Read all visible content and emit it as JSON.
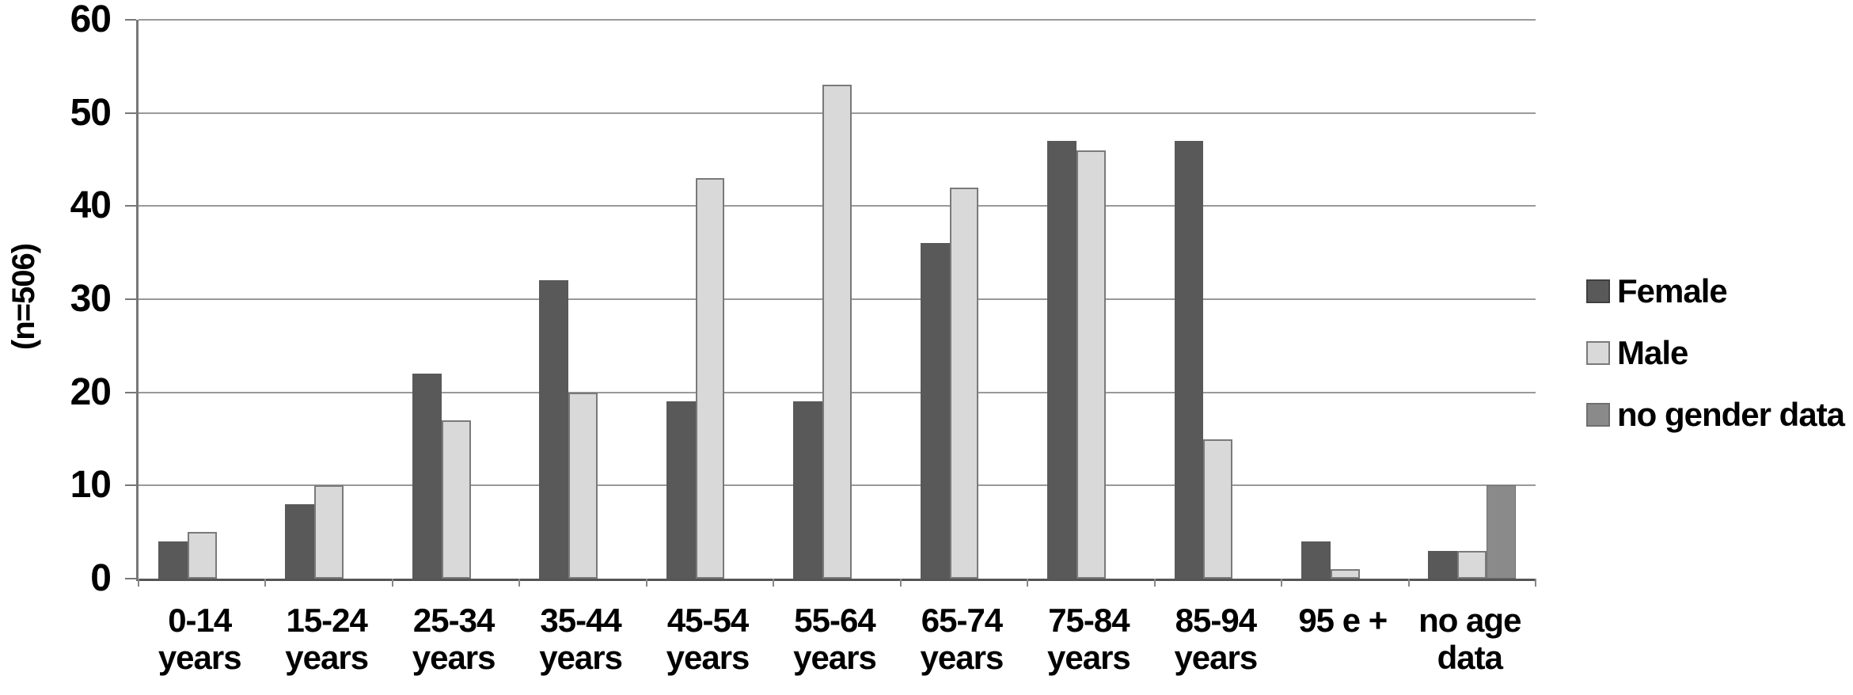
{
  "figure": {
    "background": "#ffffff",
    "colors": {
      "female": "#595959",
      "male": "#d9d9d9",
      "male_border": "#7a7a7a",
      "no_gender_data": "#8a8a8a",
      "gridline": "#999999",
      "x_axis_line": "#555555",
      "y_axis_line": "#777777",
      "text": "#000000"
    }
  },
  "chart_data": {
    "type": "bar",
    "title": "",
    "xlabel": "",
    "ylabel": "(n=506)",
    "ylim": [
      0,
      60
    ],
    "ytick_step": 10,
    "ytick_labels": [
      "0",
      "10",
      "20",
      "30",
      "40",
      "50",
      "60"
    ],
    "grid": true,
    "legend_position": "right",
    "categories": [
      "0-14\nyears",
      "15-24\nyears",
      "25-34\nyears",
      "35-44\nyears",
      "45-54\nyears",
      "55-64\nyears",
      "65-74\nyears",
      "75-84\nyears",
      "85-94\nyears",
      "95 e +",
      "no age\ndata"
    ],
    "series": [
      {
        "name": "Female",
        "color": "#595959",
        "values": [
          4,
          8,
          22,
          32,
          19,
          19,
          36,
          47,
          47,
          4,
          3
        ]
      },
      {
        "name": "Male",
        "color": "#d9d9d9",
        "border_color": "#7a7a7a",
        "values": [
          5,
          10,
          17,
          20,
          43,
          53,
          42,
          46,
          15,
          1,
          3
        ]
      },
      {
        "name": "no gender data",
        "color": "#8a8a8a",
        "border_color": "#6f6f6f",
        "values": [
          0,
          0,
          0,
          0,
          0,
          0,
          0,
          0,
          0,
          0,
          10
        ]
      }
    ]
  }
}
